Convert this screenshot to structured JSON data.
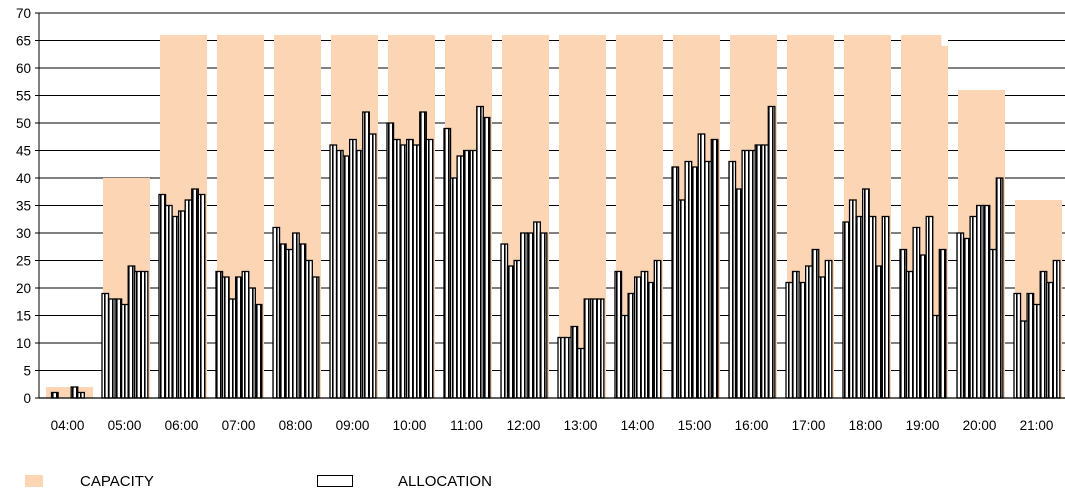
{
  "chart_data": {
    "type": "bar",
    "categories": [
      "04:00",
      "05:00",
      "06:00",
      "07:00",
      "08:00",
      "09:00",
      "10:00",
      "11:00",
      "12:00",
      "13:00",
      "14:00",
      "15:00",
      "16:00",
      "17:00",
      "18:00",
      "19:00",
      "20:00",
      "21:00"
    ],
    "ylim": [
      0,
      70
    ],
    "yticks": [
      0,
      5,
      10,
      15,
      20,
      25,
      30,
      35,
      40,
      45,
      50,
      55,
      60,
      65,
      70
    ],
    "grid": true,
    "legend_position": "bottom-left",
    "series": [
      {
        "name": "CAPACITY",
        "color": "#FCD5B5",
        "values": [
          2,
          40,
          66,
          66,
          66,
          66,
          66,
          66,
          66,
          66,
          66,
          66,
          66,
          66,
          66,
          66,
          56,
          36
        ],
        "note_last_bar_19": 64
      },
      {
        "name": "ALLOCATION",
        "color": "#000000",
        "pattern": "vertical-stripes",
        "groups": [
          [
            0,
            1,
            0,
            0,
            2,
            1
          ],
          [
            19,
            18,
            18,
            17,
            24,
            23,
            23
          ],
          [
            37,
            35,
            33,
            34,
            36,
            38,
            37
          ],
          [
            23,
            22,
            18,
            22,
            23,
            20,
            17
          ],
          [
            31,
            28,
            27,
            30,
            28,
            25,
            22
          ],
          [
            46,
            45,
            44,
            47,
            45,
            52,
            48
          ],
          [
            50,
            47,
            46,
            47,
            46,
            52,
            47
          ],
          [
            49,
            40,
            44,
            45,
            45,
            53,
            51
          ],
          [
            28,
            24,
            25,
            30,
            30,
            32,
            30
          ],
          [
            11,
            11,
            13,
            9,
            18,
            18,
            18
          ],
          [
            23,
            15,
            19,
            22,
            23,
            21,
            25
          ],
          [
            42,
            36,
            43,
            42,
            48,
            43,
            47
          ],
          [
            43,
            38,
            45,
            45,
            46,
            46,
            53
          ],
          [
            21,
            23,
            21,
            24,
            27,
            22,
            25
          ],
          [
            32,
            36,
            33,
            38,
            33,
            24,
            33
          ],
          [
            27,
            23,
            31,
            26,
            33,
            15,
            27
          ],
          [
            30,
            29,
            33,
            35,
            35,
            27,
            40
          ],
          [
            19,
            14,
            19,
            17,
            23,
            21,
            25
          ]
        ]
      }
    ]
  },
  "legend": {
    "capacity_label": "CAPACITY",
    "allocation_label": "ALLOCATION"
  }
}
